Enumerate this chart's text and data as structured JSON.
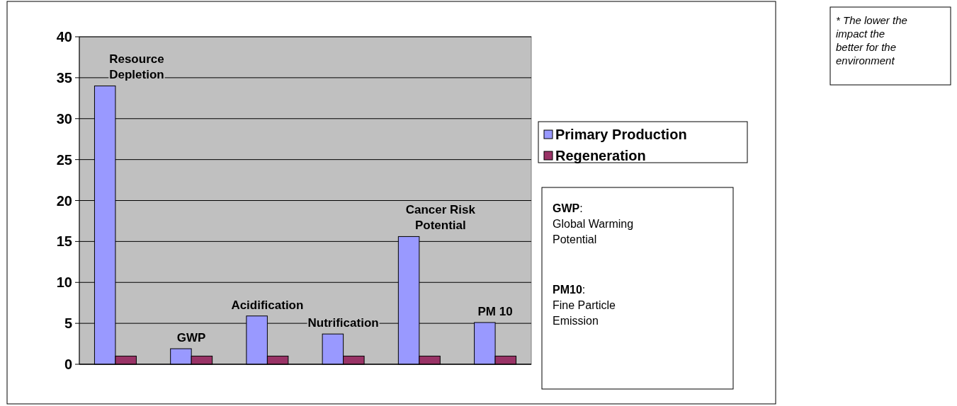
{
  "chart_data": {
    "type": "bar",
    "categories": [
      "Resource Depletion",
      "GWP",
      "Acidification",
      "Nutrification",
      "Cancer Risk Potential",
      "PM 10"
    ],
    "series": [
      {
        "name": "Primary Production",
        "color": "#9999ff",
        "values": [
          34,
          1.9,
          5.9,
          3.7,
          15.6,
          5.1
        ]
      },
      {
        "name": "Regeneration",
        "color": "#993366",
        "values": [
          1,
          1,
          1,
          1,
          1,
          1
        ]
      }
    ],
    "ylim": [
      0,
      40
    ],
    "yticks": [
      0,
      5,
      10,
      15,
      20,
      25,
      30,
      35,
      40
    ],
    "grid": "y",
    "legend": "right",
    "annotations": [
      "GWP: Global Warming Potential",
      "PM10: Fine Particle Emission",
      "* The lower the impact the better for the environment"
    ]
  }
}
